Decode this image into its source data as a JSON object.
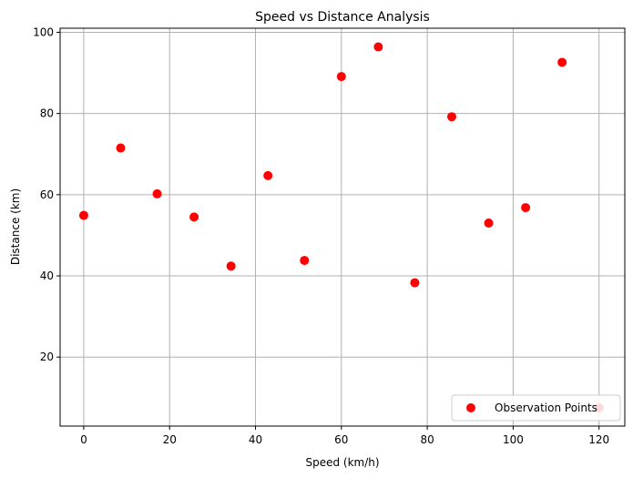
{
  "chart_data": {
    "type": "scatter",
    "title": "Speed vs Distance Analysis",
    "xlabel": "Speed (km/h)",
    "ylabel": "Distance (km)",
    "xlim": [
      -5.5,
      126
    ],
    "ylim": [
      3,
      101
    ],
    "xticks": [
      0,
      20,
      40,
      60,
      80,
      100,
      120
    ],
    "yticks": [
      20,
      40,
      60,
      80,
      100
    ],
    "grid": true,
    "legend_position": "bottom-right",
    "series": [
      {
        "name": "Observation Points",
        "color": "#ff0000",
        "marker": "circle",
        "x": [
          0,
          8.6,
          17.1,
          25.7,
          34.3,
          42.9,
          51.4,
          60.0,
          68.6,
          77.1,
          85.7,
          94.3,
          102.9,
          111.4,
          120.0
        ],
        "y": [
          54.9,
          71.5,
          60.2,
          54.5,
          42.4,
          64.7,
          43.8,
          89.1,
          96.4,
          38.3,
          79.2,
          53.0,
          56.8,
          92.6,
          7.5
        ]
      }
    ]
  }
}
